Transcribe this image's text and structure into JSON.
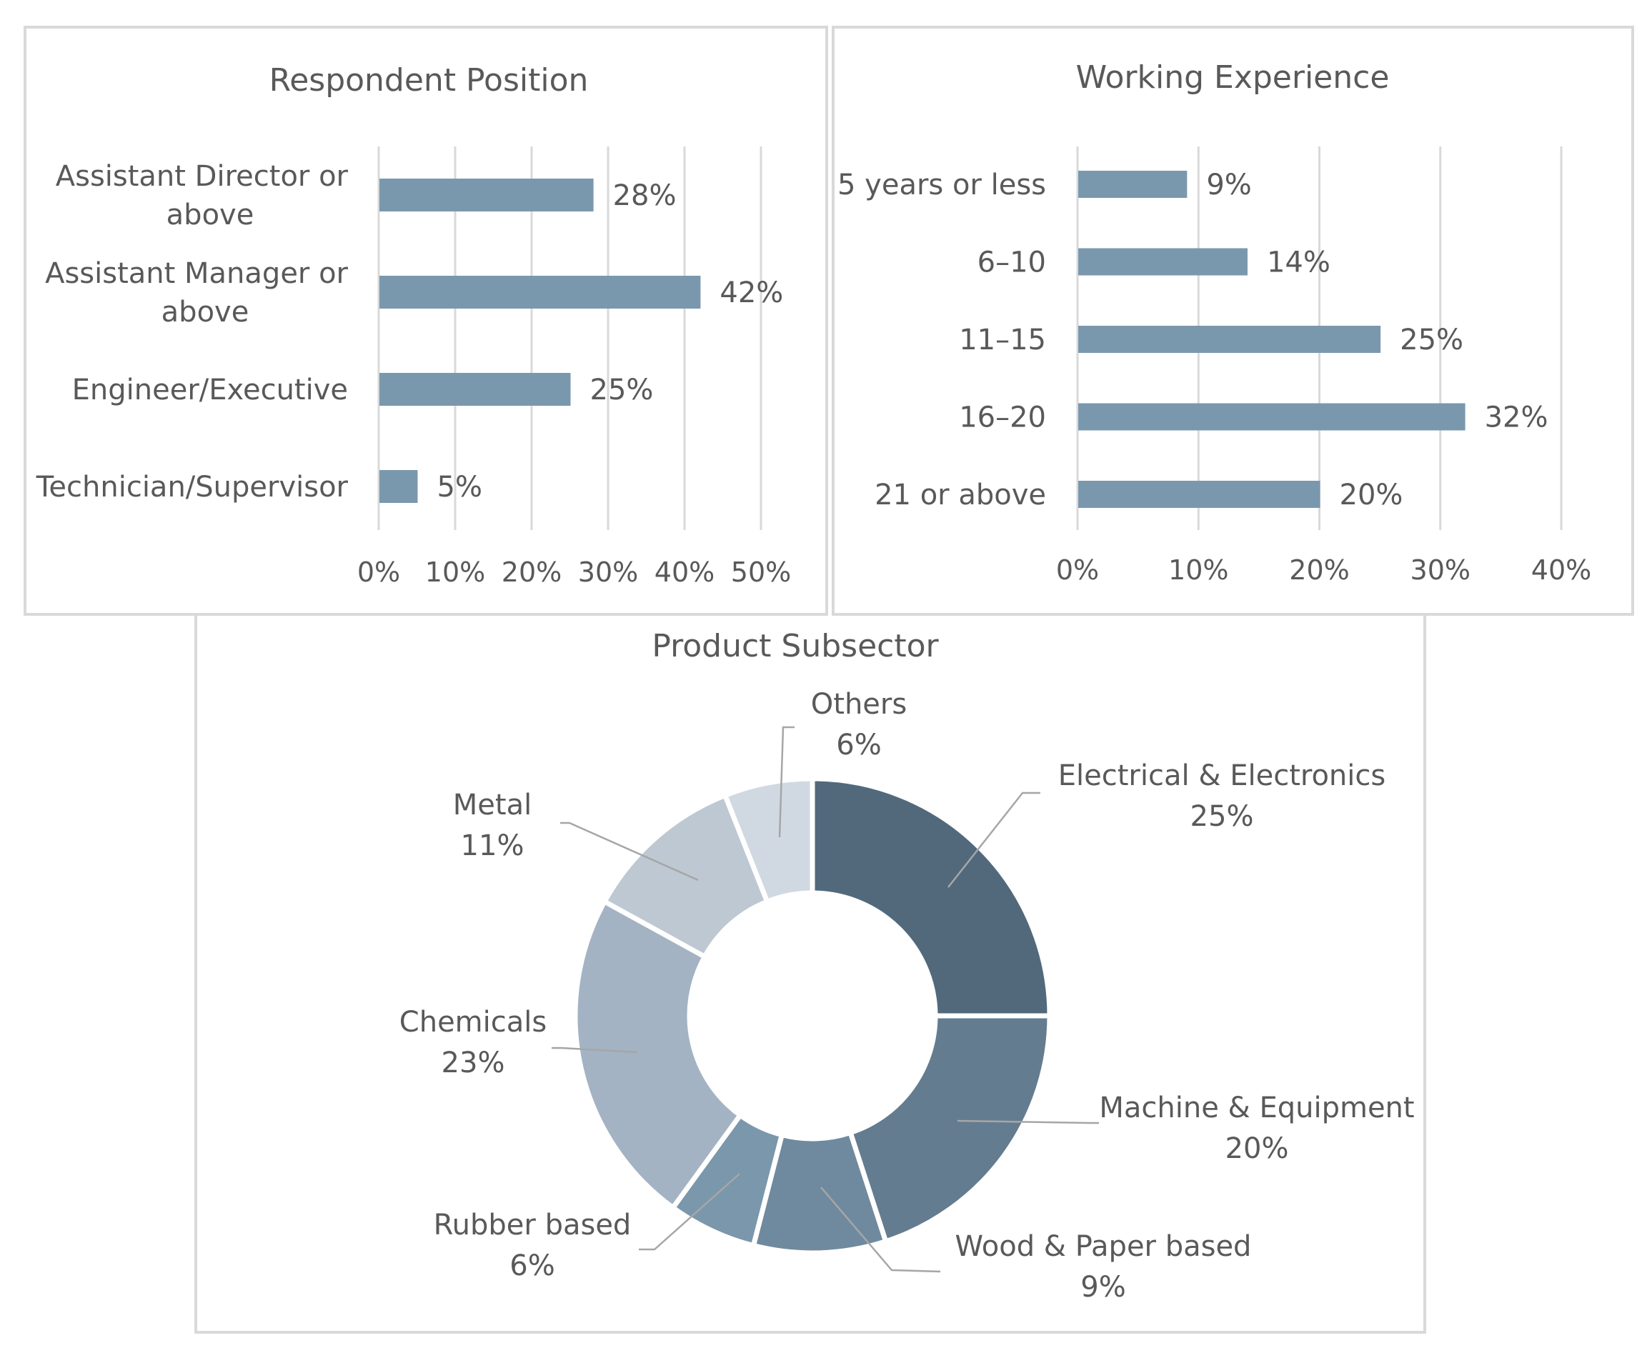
{
  "chart_data": [
    {
      "type": "bar",
      "orientation": "horizontal",
      "title": "Respondent Position",
      "categories": [
        [
          "Assistant Director or",
          "above"
        ],
        [
          "Assistant Manager or",
          "above"
        ],
        [
          "Engineer/Executive"
        ],
        [
          "Technician/Supervisor"
        ]
      ],
      "values": [
        28,
        42,
        25,
        5
      ],
      "value_labels": [
        "28%",
        "42%",
        "25%",
        "5%"
      ],
      "xlim": [
        0,
        50
      ],
      "ticks": [
        "0%",
        "10%",
        "20%",
        "30%",
        "40%",
        "50%"
      ],
      "grid": true,
      "color": "#7a98ad"
    },
    {
      "type": "bar",
      "orientation": "horizontal",
      "title": "Working Experience",
      "categories": [
        "5 years or less",
        "6–10",
        "11–15",
        "16–20",
        "21 or above"
      ],
      "values": [
        9,
        14,
        25,
        32,
        20
      ],
      "value_labels": [
        "9%",
        "14%",
        "25%",
        "32%",
        "20%"
      ],
      "xlim": [
        0,
        40
      ],
      "ticks": [
        "0%",
        "10%",
        "20%",
        "30%",
        "40%"
      ],
      "grid": true,
      "color": "#7a98ad"
    },
    {
      "type": "pie",
      "donut": true,
      "title": "Product Subsector",
      "slices": [
        {
          "label": "Electrical & Electronics",
          "value": 25,
          "value_label": "25%",
          "color": "#52697c"
        },
        {
          "label": "Machine & Equipment",
          "value": 20,
          "value_label": "20%",
          "color": "#647c8f"
        },
        {
          "label": "Wood & Paper based",
          "value": 9,
          "value_label": "9%",
          "color": "#6f8a9e"
        },
        {
          "label": "Rubber based",
          "value": 6,
          "value_label": "6%",
          "color": "#7a97ab"
        },
        {
          "label": "Chemicals",
          "value": 23,
          "value_label": "23%",
          "color": "#a3b3c3"
        },
        {
          "label": "Metal",
          "value": 11,
          "value_label": "11%",
          "color": "#bec8d2"
        },
        {
          "label": "Others",
          "value": 6,
          "value_label": "6%",
          "color": "#d0d9e2"
        }
      ]
    }
  ]
}
